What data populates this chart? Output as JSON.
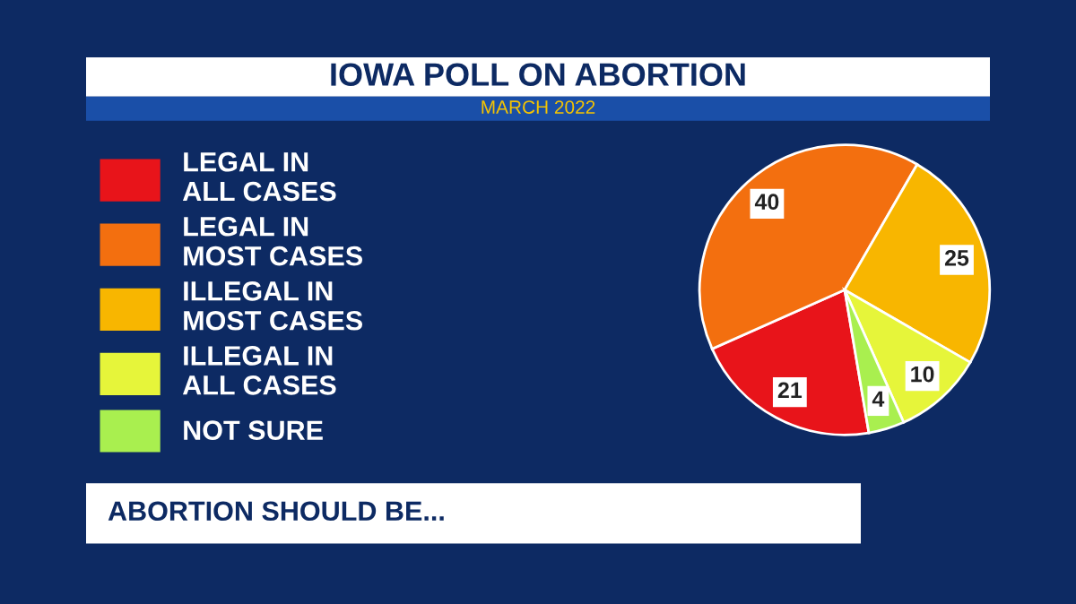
{
  "chart_data": {
    "type": "pie",
    "title": "IOWA POLL ON ABORTION",
    "subtitle": "MARCH 2022",
    "categories": [
      "LEGAL IN\nALL CASES",
      "LEGAL IN\nMOST CASES",
      "ILLEGAL IN\nMOST CASES",
      "ILLEGAL IN\nALL CASES",
      "NOT SURE"
    ],
    "values": [
      21,
      40,
      25,
      10,
      4
    ],
    "colors": [
      "#e8141a",
      "#f36f0f",
      "#f8b600",
      "#e6f53a",
      "#a9ef4f"
    ],
    "data_labels": true,
    "legend": "left",
    "annotations": [
      "ABORTION SHOULD BE..."
    ]
  }
}
